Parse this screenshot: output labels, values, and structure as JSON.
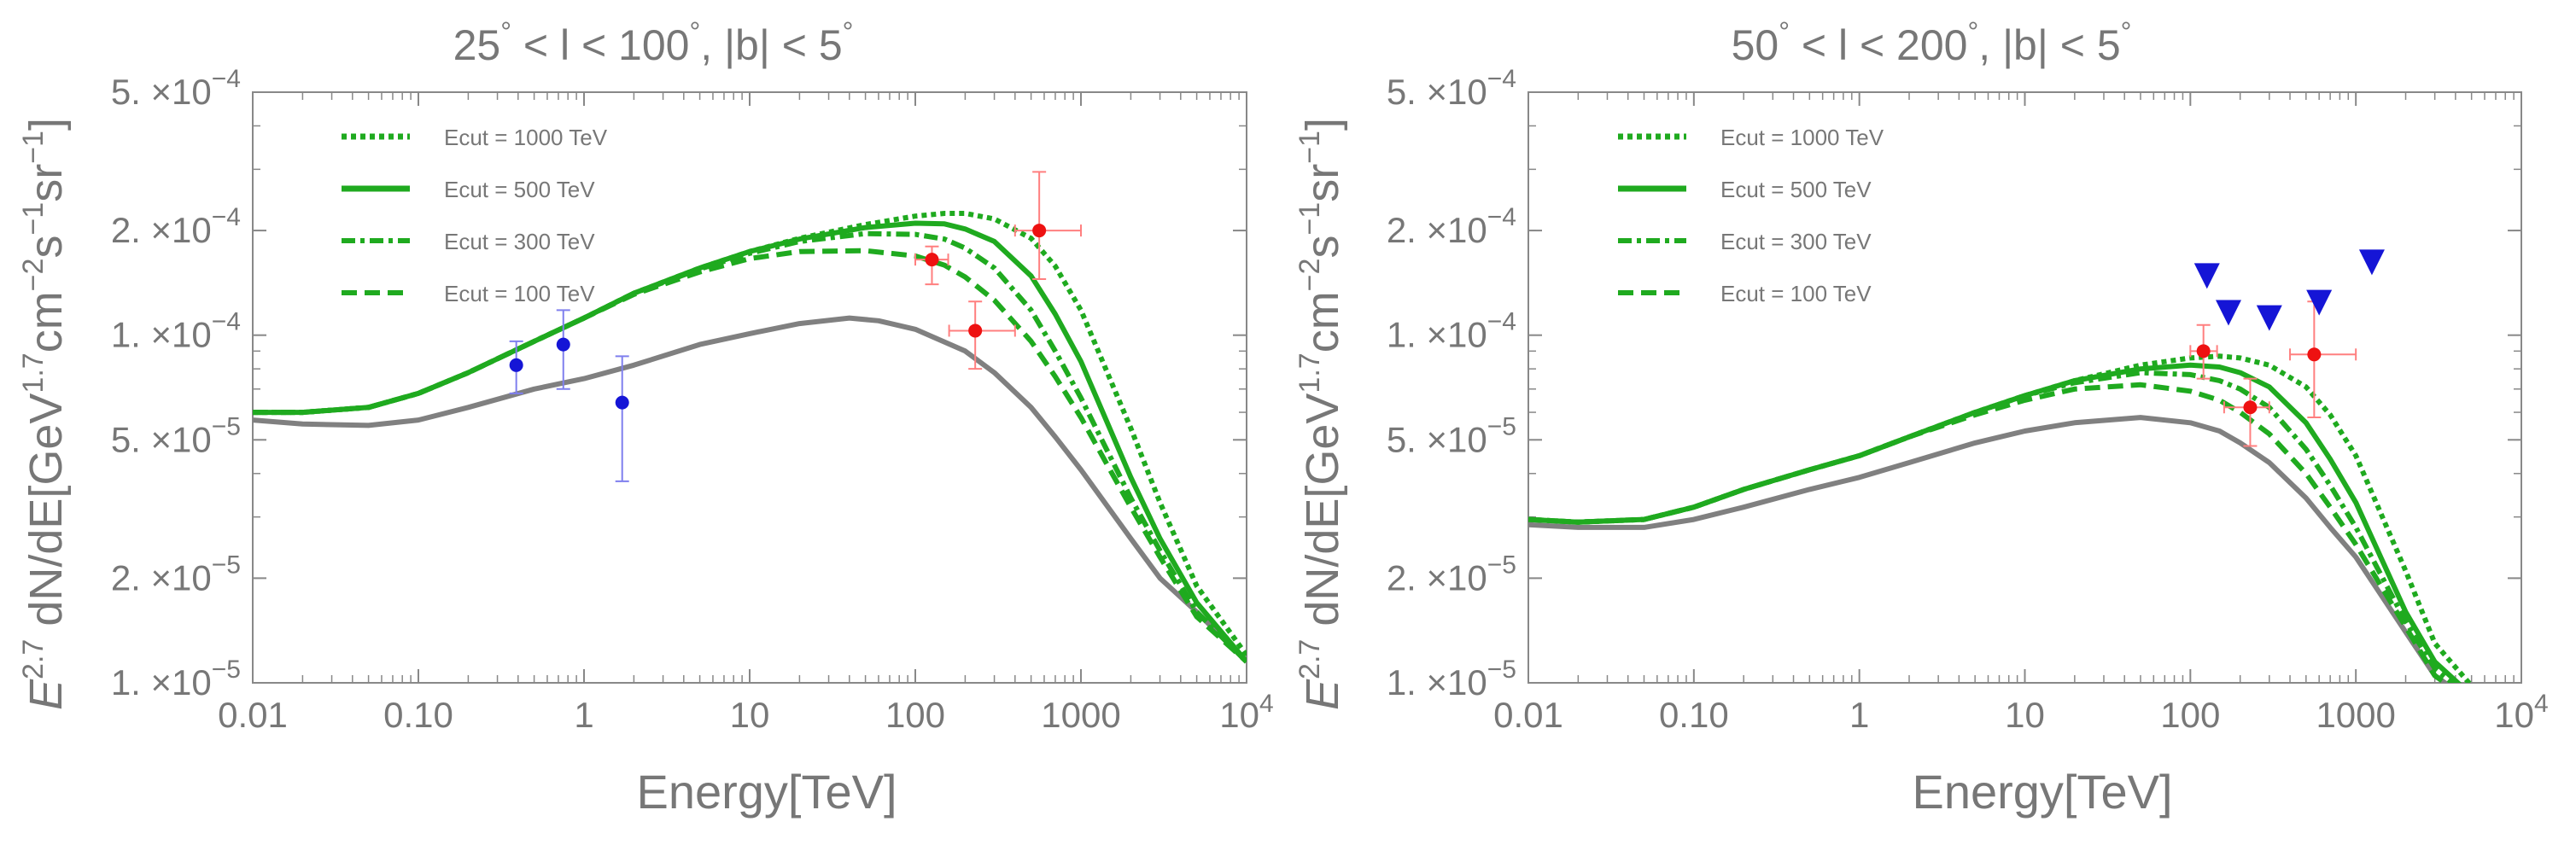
{
  "colors": {
    "text": "#777777",
    "axis": "#888888",
    "green": "#1faa1f",
    "gray": "#808080",
    "red": "#ee1111",
    "blue": "#1515d6",
    "errbar_red": "#ff7f7f",
    "errbar_blue": "#7f7fee"
  },
  "chart_data": [
    {
      "type": "line",
      "title": "25° < l < 100°, |b| < 5°",
      "title_parts": {
        "part1": "25",
        "part2": " < l < 100",
        "part3": ", |b| < 5",
        "deg": "°"
      },
      "xlabel": "Energy[TeV]",
      "ylabel": "E^2.7 dN/dE[GeV^1.7 cm^-2 s^-1 sr^-1]",
      "ylabel_parts": {
        "e": "E",
        "e_exp": "2.7",
        "mid": " dN/dE[GeV",
        "gev_exp": "1.7",
        "cm": "cm",
        "cm_exp": "−2",
        "s": "s",
        "s_exp": "−1",
        "sr": "sr",
        "sr_exp": "−1",
        "close": "]"
      },
      "x_scale": "log",
      "y_scale": "log",
      "xlim": [
        0.01,
        10000
      ],
      "ylim": [
        1e-05,
        0.0005
      ],
      "x_ticks": [
        {
          "v": 0.01,
          "label": "0.01"
        },
        {
          "v": 0.1,
          "label": "0.10"
        },
        {
          "v": 1,
          "label": "1"
        },
        {
          "v": 10,
          "label": "10"
        },
        {
          "v": 100,
          "label": "100"
        },
        {
          "v": 1000,
          "label": "1000"
        },
        {
          "v": 10000,
          "label": "10",
          "exp": "4"
        }
      ],
      "y_ticks": [
        {
          "v": 1e-05,
          "mant": "1.",
          "exp": "−5"
        },
        {
          "v": 2e-05,
          "mant": "2.",
          "exp": "−5"
        },
        {
          "v": 5e-05,
          "mant": "5.",
          "exp": "−5"
        },
        {
          "v": 0.0001,
          "mant": "1.",
          "exp": "−4"
        },
        {
          "v": 0.0002,
          "mant": "2.",
          "exp": "−4"
        },
        {
          "v": 0.0005,
          "mant": "5.",
          "exp": "−4"
        }
      ],
      "times_glyph": "×10",
      "legend_position": "top-left",
      "series": [
        {
          "name": "Ecut = 1000 TeV",
          "style": "dotted",
          "color": "green",
          "x": [
            0.01,
            0.02,
            0.05,
            0.1,
            0.2,
            0.5,
            1,
            2,
            5,
            10,
            20,
            50,
            100,
            150,
            200,
            300,
            500,
            700,
            1000,
            2000,
            3000,
            5000,
            10000
          ],
          "y": [
            6e-05,
            6e-05,
            6.2e-05,
            6.8e-05,
            7.8e-05,
            9.6e-05,
            0.000112,
            0.000132,
            0.000156,
            0.000174,
            0.00019,
            0.000208,
            0.00022,
            0.000224,
            0.000224,
            0.000216,
            0.00019,
            0.000158,
            0.000118,
            5.4e-05,
            3.3e-05,
            1.9e-05,
            1.2e-05
          ]
        },
        {
          "name": "Ecut = 500 TeV",
          "style": "solid",
          "color": "green",
          "x": [
            0.01,
            0.02,
            0.05,
            0.1,
            0.2,
            0.5,
            1,
            2,
            5,
            10,
            20,
            50,
            100,
            150,
            200,
            300,
            500,
            700,
            1000,
            2000,
            3000,
            5000,
            10000
          ],
          "y": [
            6e-05,
            6e-05,
            6.2e-05,
            6.8e-05,
            7.8e-05,
            9.6e-05,
            0.000112,
            0.000132,
            0.000156,
            0.000174,
            0.000189,
            0.000204,
            0.00021,
            0.000209,
            0.000202,
            0.000186,
            0.000148,
            0.000115,
            8.4e-05,
            3.9e-05,
            2.6e-05,
            1.7e-05,
            1.15e-05
          ]
        },
        {
          "name": "Ecut = 300 TeV",
          "style": "dashdot",
          "color": "green",
          "x": [
            0.01,
            0.02,
            0.05,
            0.1,
            0.2,
            0.5,
            1,
            2,
            5,
            10,
            20,
            50,
            100,
            150,
            200,
            300,
            500,
            700,
            1000,
            2000,
            3000,
            5000,
            10000
          ],
          "y": [
            6e-05,
            6e-05,
            6.2e-05,
            6.8e-05,
            7.8e-05,
            9.6e-05,
            0.000112,
            0.000132,
            0.000155,
            0.000172,
            0.000186,
            0.000196,
            0.000195,
            0.000189,
            0.000178,
            0.000156,
            0.000118,
            9e-05,
            6.6e-05,
            3.4e-05,
            2.4e-05,
            1.6e-05,
            1.15e-05
          ]
        },
        {
          "name": "Ecut = 100 TeV",
          "style": "dashed",
          "color": "green",
          "x": [
            0.01,
            0.02,
            0.05,
            0.1,
            0.2,
            0.5,
            1,
            2,
            5,
            10,
            20,
            50,
            100,
            150,
            200,
            300,
            500,
            700,
            1000,
            2000,
            3000,
            5000,
            10000
          ],
          "y": [
            6e-05,
            6e-05,
            6.2e-05,
            6.8e-05,
            7.8e-05,
            9.6e-05,
            0.000112,
            0.000131,
            0.000152,
            0.000166,
            0.000174,
            0.000175,
            0.000169,
            0.000159,
            0.000147,
            0.000126,
            9.6e-05,
            7.6e-05,
            5.8e-05,
            3.2e-05,
            2.3e-05,
            1.55e-05,
            1.15e-05
          ]
        },
        {
          "name": "",
          "style": "solid",
          "color": "gray",
          "x": [
            0.01,
            0.02,
            0.05,
            0.1,
            0.2,
            0.5,
            1,
            2,
            5,
            10,
            20,
            40,
            60,
            100,
            200,
            300,
            500,
            700,
            1000,
            2000,
            3000,
            5000,
            10000
          ],
          "y": [
            5.7e-05,
            5.55e-05,
            5.5e-05,
            5.7e-05,
            6.2e-05,
            7e-05,
            7.5e-05,
            8.2e-05,
            9.4e-05,
            0.000101,
            0.000108,
            0.000112,
            0.00011,
            0.000104,
            9e-05,
            7.8e-05,
            6.2e-05,
            5.1e-05,
            4.1e-05,
            2.6e-05,
            2e-05,
            1.6e-05,
            1.15e-05
          ]
        }
      ],
      "points": [
        {
          "color": "blue",
          "x": 0.39,
          "y": 8.2e-05,
          "xerr": [
            0.39,
            0.39
          ],
          "yerr": [
            6.8e-05,
            9.6e-05
          ]
        },
        {
          "color": "blue",
          "x": 0.75,
          "y": 9.4e-05,
          "xerr": [
            0.75,
            0.75
          ],
          "yerr": [
            7e-05,
            0.000118
          ]
        },
        {
          "color": "blue",
          "x": 1.7,
          "y": 6.4e-05,
          "xerr": [
            1.7,
            1.7
          ],
          "yerr": [
            3.8e-05,
            8.7e-05
          ]
        },
        {
          "color": "red",
          "x": 126,
          "y": 0.000165,
          "xerr": [
            100,
            158
          ],
          "yerr": [
            0.00014,
            0.00018
          ]
        },
        {
          "color": "red",
          "x": 230,
          "y": 0.000103,
          "xerr": [
            160,
            400
          ],
          "yerr": [
            8e-05,
            0.000125
          ]
        },
        {
          "color": "red",
          "x": 560,
          "y": 0.0002,
          "xerr": [
            400,
            1000
          ],
          "yerr": [
            0.000145,
            0.000295
          ]
        }
      ],
      "upper_limits": []
    },
    {
      "type": "line",
      "title": "50° < l < 200°, |b| < 5°",
      "title_parts": {
        "part1": "50",
        "part2": " < l < 200",
        "part3": ", |b| < 5",
        "deg": "°"
      },
      "xlabel": "Energy[TeV]",
      "ylabel": "E^2.7 dN/dE[GeV^1.7 cm^-2 s^-1 sr^-1]",
      "ylabel_parts": {
        "e": "E",
        "e_exp": "2.7",
        "mid": " dN/dE[GeV",
        "gev_exp": "1.7",
        "cm": "cm",
        "cm_exp": "−2",
        "s": "s",
        "s_exp": "−1",
        "sr": "sr",
        "sr_exp": "−1",
        "close": "]"
      },
      "x_scale": "log",
      "y_scale": "log",
      "xlim": [
        0.01,
        10000
      ],
      "ylim": [
        1e-05,
        0.0005
      ],
      "x_ticks": [
        {
          "v": 0.01,
          "label": "0.01"
        },
        {
          "v": 0.1,
          "label": "0.10"
        },
        {
          "v": 1,
          "label": "1"
        },
        {
          "v": 10,
          "label": "10"
        },
        {
          "v": 100,
          "label": "100"
        },
        {
          "v": 1000,
          "label": "1000"
        },
        {
          "v": 10000,
          "label": "10",
          "exp": "4"
        }
      ],
      "y_ticks": [
        {
          "v": 1e-05,
          "mant": "1.",
          "exp": "−5"
        },
        {
          "v": 2e-05,
          "mant": "2.",
          "exp": "−5"
        },
        {
          "v": 5e-05,
          "mant": "5.",
          "exp": "−5"
        },
        {
          "v": 0.0001,
          "mant": "1.",
          "exp": "−4"
        },
        {
          "v": 0.0002,
          "mant": "2.",
          "exp": "−4"
        },
        {
          "v": 0.0005,
          "mant": "5.",
          "exp": "−4"
        }
      ],
      "times_glyph": "×10",
      "legend_position": "top-left",
      "series": [
        {
          "name": "Ecut = 1000 TeV",
          "style": "dotted",
          "color": "green",
          "x": [
            0.01,
            0.02,
            0.05,
            0.1,
            0.2,
            0.5,
            1,
            2,
            5,
            10,
            20,
            50,
            100,
            150,
            200,
            300,
            500,
            700,
            1000,
            2000,
            3000,
            5000
          ],
          "y": [
            2.95e-05,
            2.9e-05,
            2.95e-05,
            3.2e-05,
            3.6e-05,
            4.1e-05,
            4.5e-05,
            5.1e-05,
            6e-05,
            6.7e-05,
            7.4e-05,
            8.2e-05,
            8.6e-05,
            8.7e-05,
            8.6e-05,
            8.2e-05,
            7.1e-05,
            5.9e-05,
            4.5e-05,
            2.1e-05,
            1.3e-05,
            9.8e-06
          ]
        },
        {
          "name": "Ecut = 500 TeV",
          "style": "solid",
          "color": "green",
          "x": [
            0.01,
            0.02,
            0.05,
            0.1,
            0.2,
            0.5,
            1,
            2,
            5,
            10,
            20,
            50,
            100,
            150,
            200,
            300,
            500,
            700,
            1000,
            2000,
            3000,
            5000
          ],
          "y": [
            2.95e-05,
            2.9e-05,
            2.95e-05,
            3.2e-05,
            3.6e-05,
            4.1e-05,
            4.5e-05,
            5.1e-05,
            6e-05,
            6.7e-05,
            7.4e-05,
            8e-05,
            8.2e-05,
            8.1e-05,
            7.8e-05,
            7.1e-05,
            5.6e-05,
            4.4e-05,
            3.3e-05,
            1.6e-05,
            1.15e-05,
            9.2e-06
          ]
        },
        {
          "name": "Ecut = 300 TeV",
          "style": "dashdot",
          "color": "green",
          "x": [
            0.01,
            0.02,
            0.05,
            0.1,
            0.2,
            0.5,
            1,
            2,
            5,
            10,
            20,
            50,
            100,
            150,
            200,
            300,
            500,
            700,
            1000,
            2000,
            3000,
            5000
          ],
          "y": [
            2.95e-05,
            2.9e-05,
            2.95e-05,
            3.2e-05,
            3.6e-05,
            4.1e-05,
            4.5e-05,
            5.1e-05,
            6e-05,
            6.7e-05,
            7.3e-05,
            7.8e-05,
            7.7e-05,
            7.4e-05,
            7e-05,
            6.2e-05,
            4.7e-05,
            3.7e-05,
            2.8e-05,
            1.5e-05,
            1.1e-05,
            9e-06
          ]
        },
        {
          "name": "Ecut = 100 TeV",
          "style": "dashed",
          "color": "green",
          "x": [
            0.01,
            0.02,
            0.05,
            0.1,
            0.2,
            0.5,
            1,
            2,
            5,
            10,
            20,
            50,
            100,
            150,
            200,
            300,
            500,
            700,
            1000,
            2000,
            3000,
            5000
          ],
          "y": [
            2.95e-05,
            2.9e-05,
            2.95e-05,
            3.2e-05,
            3.6e-05,
            4.1e-05,
            4.5e-05,
            5.1e-05,
            5.9e-05,
            6.5e-05,
            7e-05,
            7.2e-05,
            6.9e-05,
            6.5e-05,
            6e-05,
            5.2e-05,
            4e-05,
            3.2e-05,
            2.5e-05,
            1.45e-05,
            1.05e-05,
            8.8e-06
          ]
        },
        {
          "name": "",
          "style": "solid",
          "color": "gray",
          "x": [
            0.01,
            0.02,
            0.05,
            0.1,
            0.2,
            0.5,
            1,
            2,
            5,
            10,
            20,
            50,
            100,
            150,
            200,
            300,
            500,
            700,
            1000,
            2000,
            3000,
            5000
          ],
          "y": [
            2.85e-05,
            2.8e-05,
            2.8e-05,
            2.95e-05,
            3.2e-05,
            3.6e-05,
            3.9e-05,
            4.3e-05,
            4.9e-05,
            5.3e-05,
            5.6e-05,
            5.8e-05,
            5.6e-05,
            5.3e-05,
            4.9e-05,
            4.3e-05,
            3.4e-05,
            2.8e-05,
            2.3e-05,
            1.4e-05,
            1.05e-05,
            8.8e-06
          ]
        }
      ],
      "points": [
        {
          "color": "red",
          "x": 120,
          "y": 9e-05,
          "xerr": [
            100,
            145
          ],
          "yerr": [
            7.5e-05,
            0.000107
          ]
        },
        {
          "color": "red",
          "x": 230,
          "y": 6.2e-05,
          "xerr": [
            160,
            300
          ],
          "yerr": [
            4.8e-05,
            7.5e-05
          ]
        },
        {
          "color": "red",
          "x": 560,
          "y": 8.8e-05,
          "xerr": [
            400,
            1000
          ],
          "yerr": [
            5.8e-05,
            0.000125
          ]
        }
      ],
      "upper_limits": [
        {
          "color": "blue",
          "x": 126,
          "y": 0.000148
        },
        {
          "color": "blue",
          "x": 170,
          "y": 0.000116
        },
        {
          "color": "blue",
          "x": 300,
          "y": 0.000112
        },
        {
          "color": "blue",
          "x": 600,
          "y": 0.000124
        },
        {
          "color": "blue",
          "x": 1250,
          "y": 0.000162
        }
      ]
    }
  ]
}
